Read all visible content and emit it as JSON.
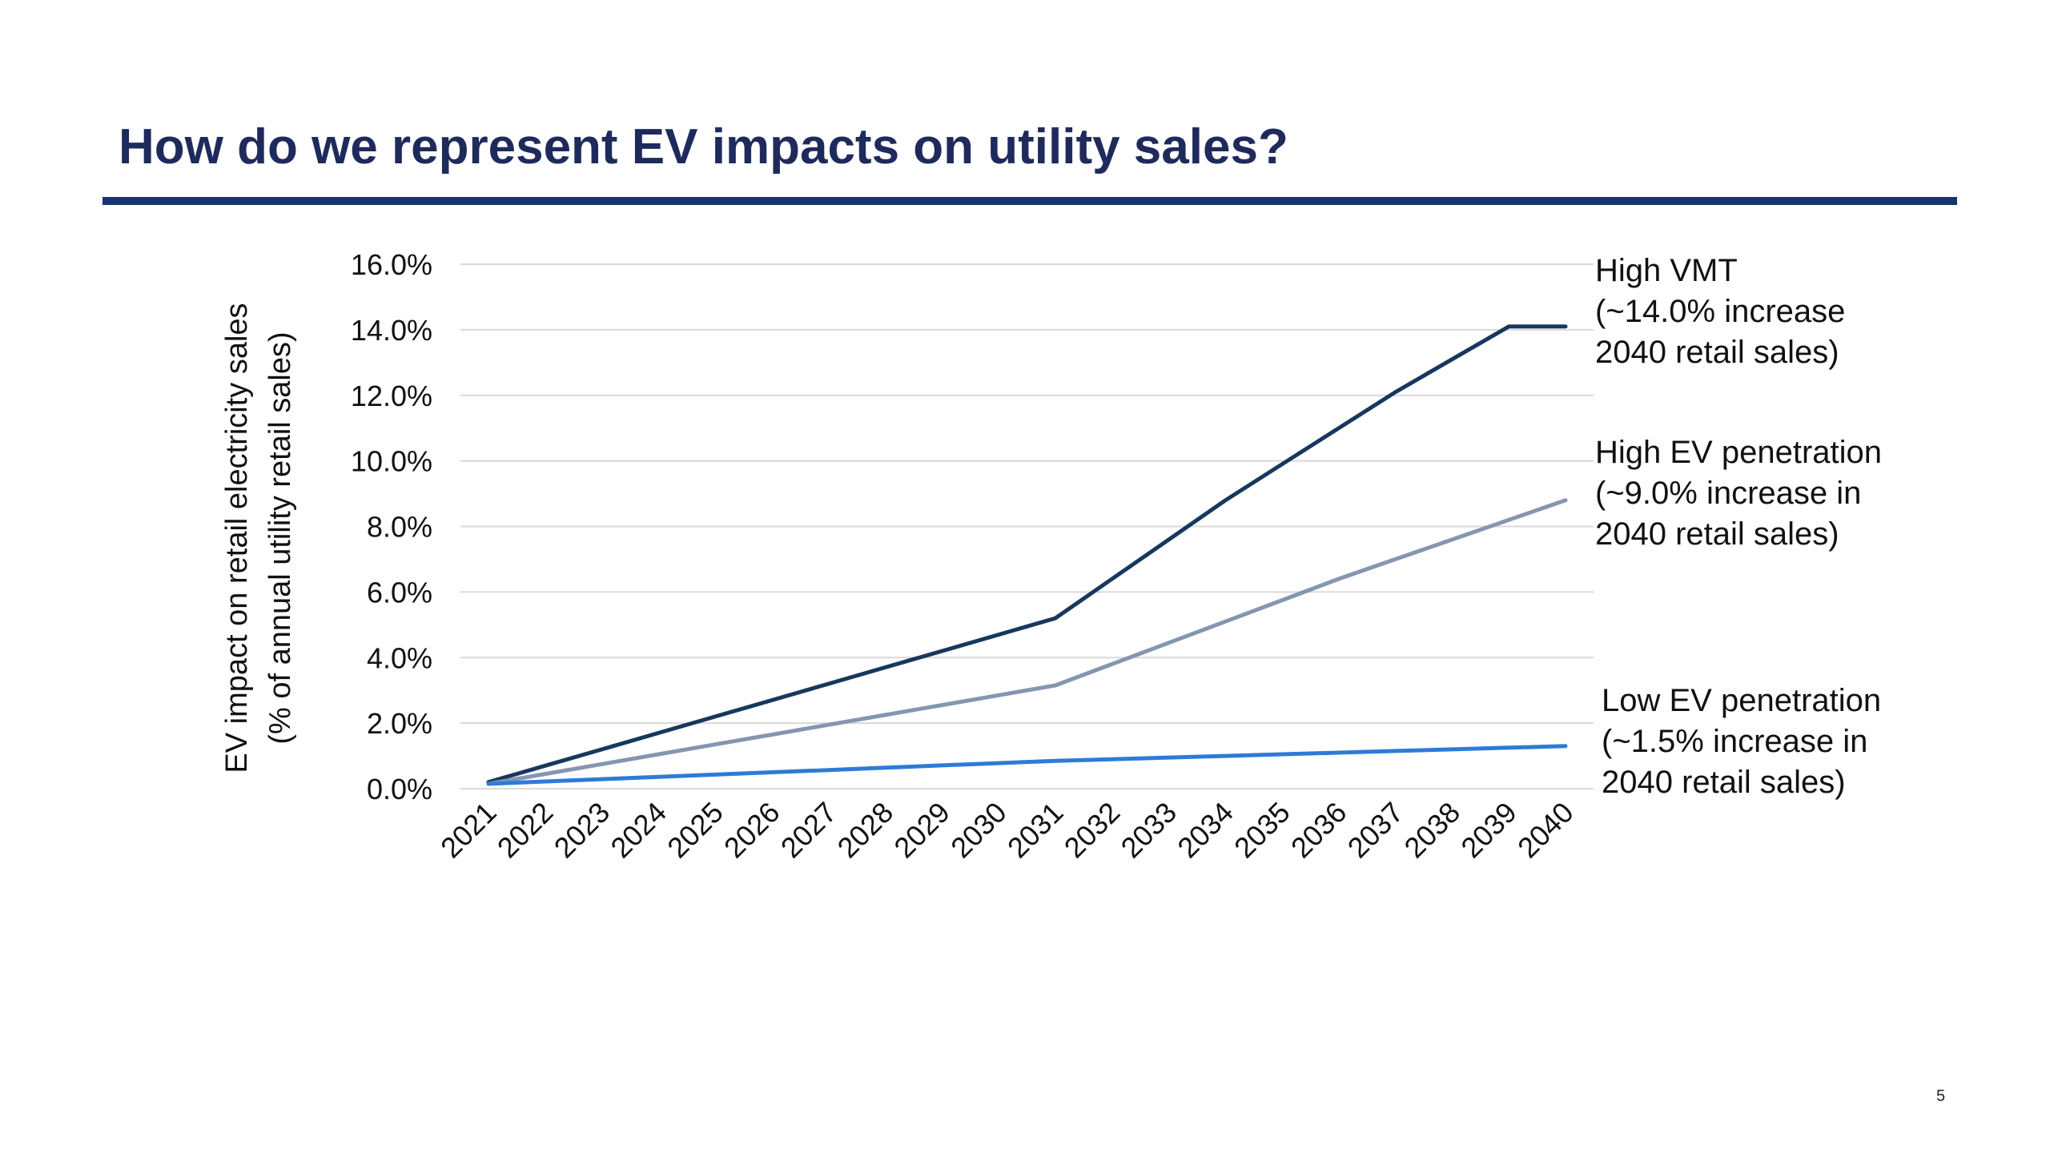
{
  "slide": {
    "title": "How do we represent EV impacts on utility sales?",
    "page_number": "5"
  },
  "annotations": [
    {
      "lines": [
        "High VMT",
        "(~14.0% increase",
        "2040 retail sales)"
      ]
    },
    {
      "lines": [
        "High EV penetration",
        "(~9.0% increase in",
        "2040 retail sales)"
      ]
    },
    {
      "lines": [
        "Low EV penetration",
        "(~1.5% increase in",
        "2040 retail sales)"
      ]
    }
  ],
  "chart_data": {
    "type": "line",
    "title": "",
    "ylabel_lines": [
      "EV impact on retail electricity sales",
      "(% of annual utility retail sales)"
    ],
    "xlabel": "",
    "ylim": [
      0,
      16
    ],
    "yticks": [
      "0.0%",
      "2.0%",
      "4.0%",
      "6.0%",
      "8.0%",
      "10.0%",
      "12.0%",
      "14.0%",
      "16.0%"
    ],
    "grid": true,
    "x": [
      "2021",
      "2022",
      "2023",
      "2024",
      "2025",
      "2026",
      "2027",
      "2028",
      "2029",
      "2030",
      "2031",
      "2032",
      "2033",
      "2034",
      "2035",
      "2036",
      "2037",
      "2038",
      "2039",
      "2040"
    ],
    "series": [
      {
        "key": "high-vmt",
        "color": "#17375e",
        "values": [
          0.2,
          0.7,
          1.2,
          1.7,
          2.2,
          2.7,
          3.2,
          3.7,
          4.2,
          4.7,
          5.2,
          6.4,
          7.6,
          8.8,
          9.9,
          11.0,
          12.1,
          13.1,
          14.1,
          14.1
        ]
      },
      {
        "key": "high-ev-penetration",
        "color": "#8496b0",
        "values": [
          0.15,
          0.45,
          0.75,
          1.05,
          1.35,
          1.65,
          1.95,
          2.25,
          2.55,
          2.85,
          3.15,
          3.8,
          4.45,
          5.1,
          5.75,
          6.4,
          7.0,
          7.6,
          8.2,
          8.8
        ]
      },
      {
        "key": "low-ev-penetration",
        "color": "#2e7bd6",
        "values": [
          0.15,
          0.22,
          0.29,
          0.36,
          0.43,
          0.5,
          0.57,
          0.64,
          0.71,
          0.78,
          0.85,
          0.9,
          0.95,
          1.0,
          1.05,
          1.1,
          1.15,
          1.2,
          1.25,
          1.3
        ]
      }
    ]
  }
}
